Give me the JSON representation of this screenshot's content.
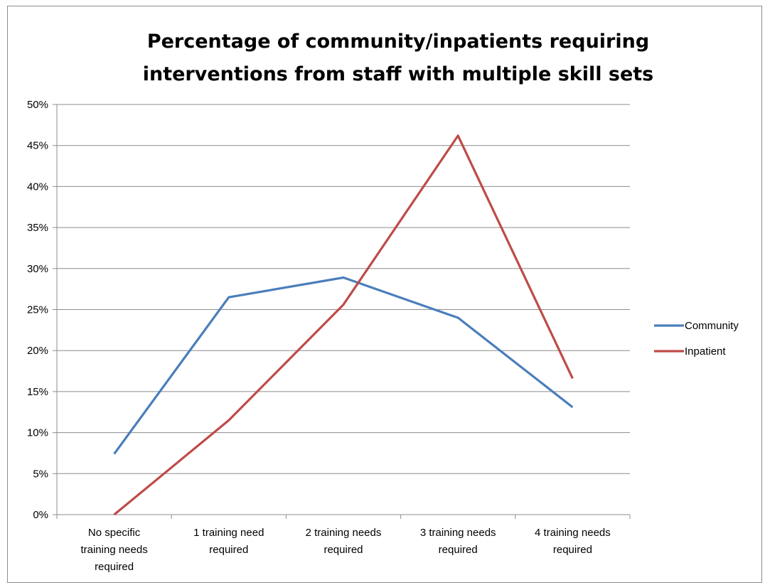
{
  "chart_data": {
    "type": "line",
    "title_lines": [
      "Percentage of community/inpatients requiring",
      "interventions from staff with multiple skill sets"
    ],
    "xlabel": "",
    "ylabel": "",
    "categories": [
      [
        "No specific",
        "training needs",
        "required"
      ],
      [
        "1 training need",
        "required"
      ],
      [
        "2 training needs",
        "required"
      ],
      [
        "3 training needs",
        "required"
      ],
      [
        "4 training needs",
        "required"
      ]
    ],
    "yticks": [
      "0%",
      "5%",
      "10%",
      "15%",
      "20%",
      "25%",
      "30%",
      "35%",
      "40%",
      "45%",
      "50%"
    ],
    "ylim": [
      0,
      50
    ],
    "grid": true,
    "legend_position": "right",
    "series": [
      {
        "name": "Community",
        "color": "#4a7ebb",
        "values": [
          7.4,
          26.5,
          28.9,
          24.0,
          13.1
        ]
      },
      {
        "name": "Inpatient",
        "color": "#be4b48",
        "values": [
          0.0,
          11.5,
          25.6,
          46.2,
          16.6
        ]
      }
    ]
  }
}
